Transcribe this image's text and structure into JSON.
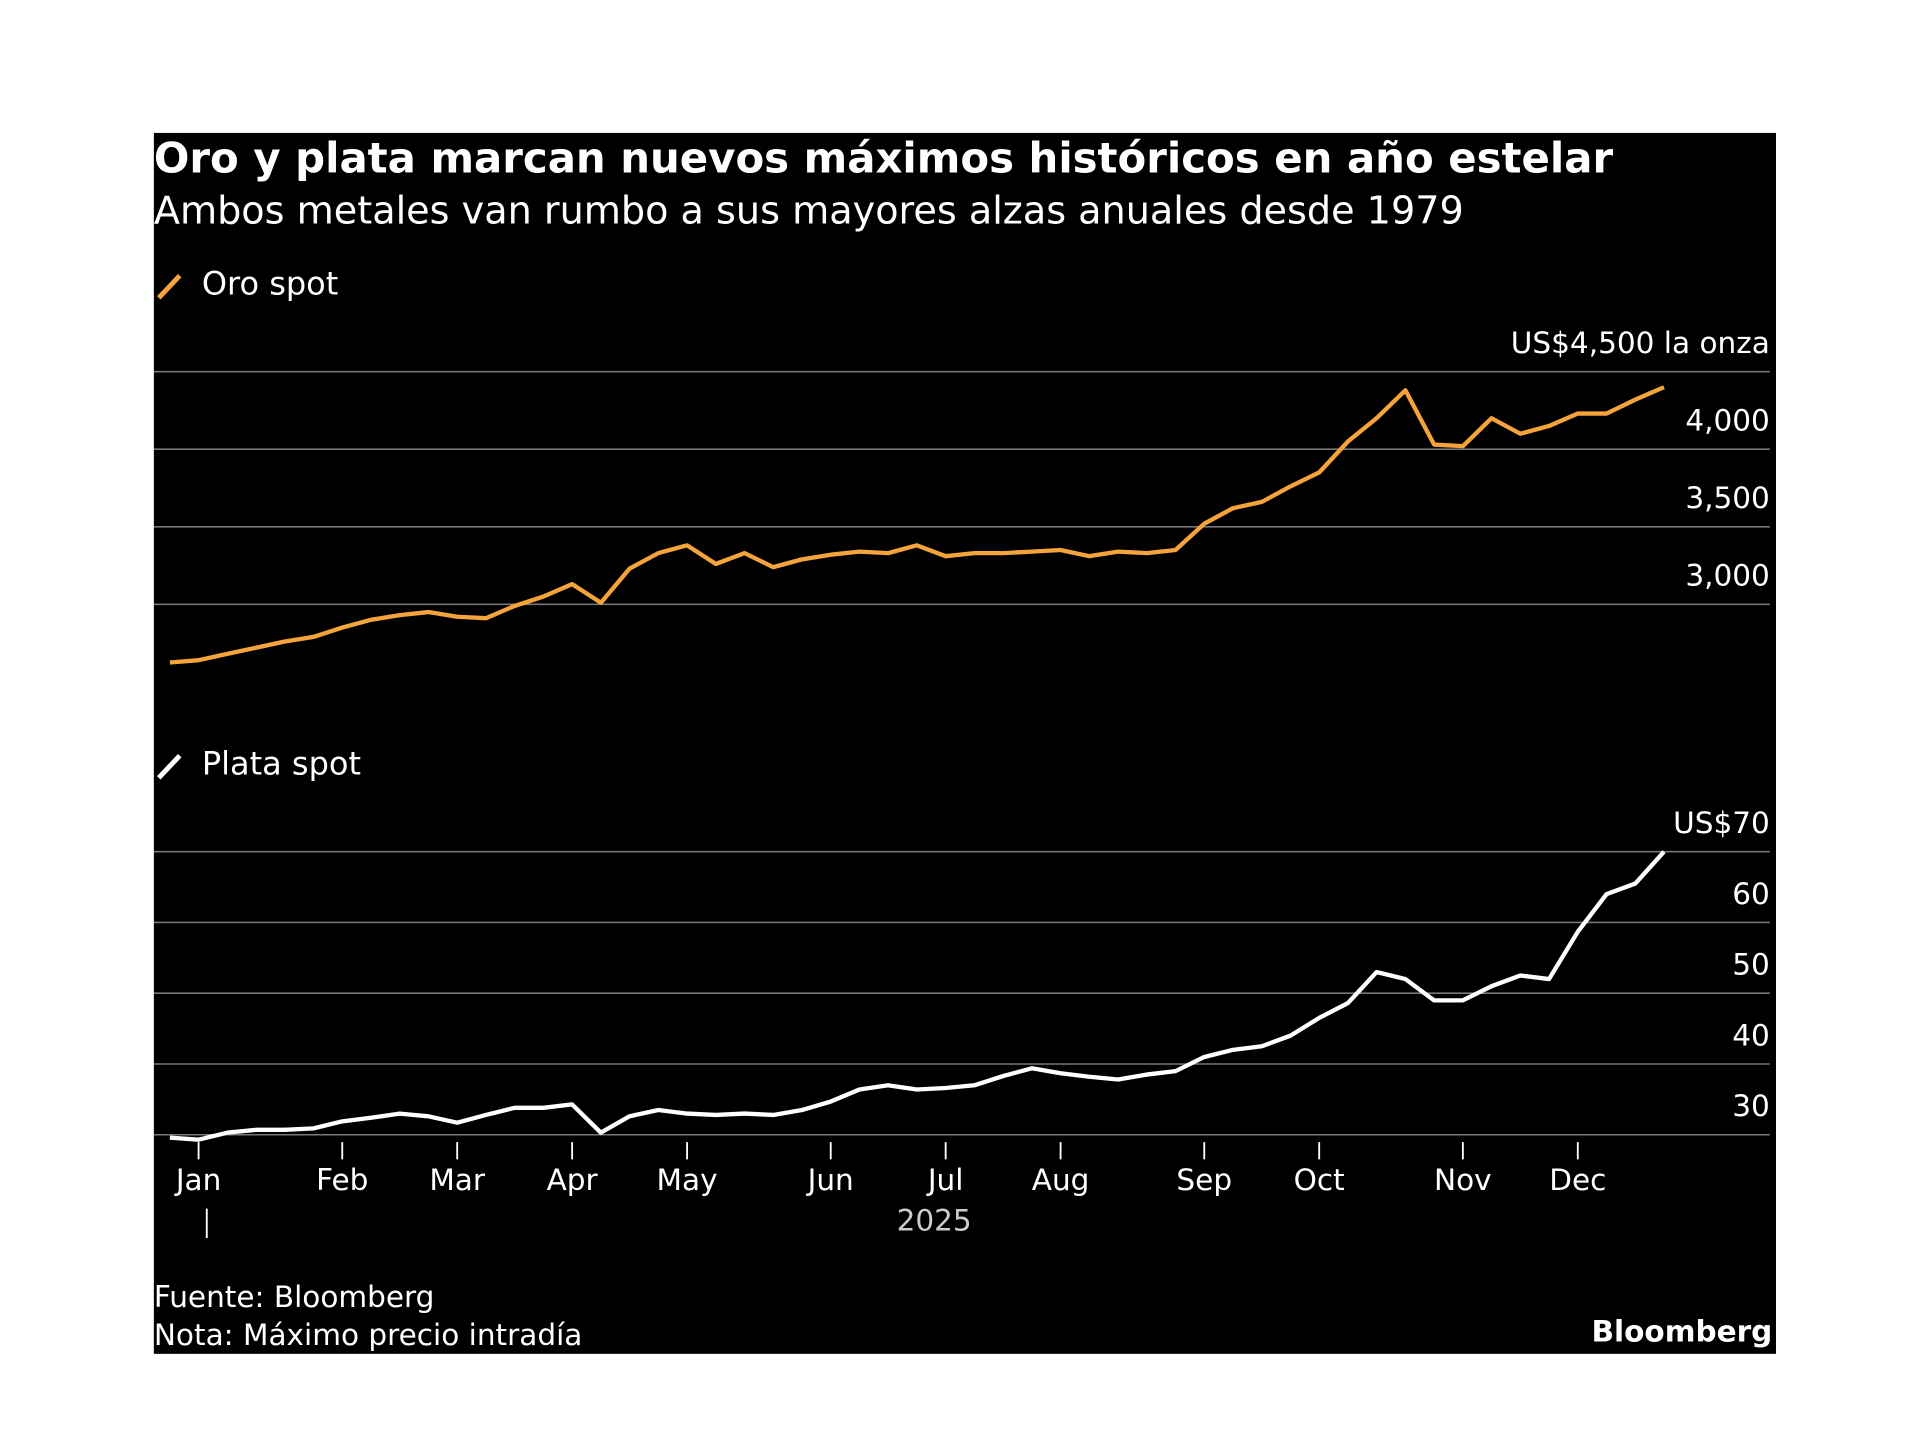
{
  "title": "Oro y plata marcan nuevos máximos históricos en año estelar",
  "subtitle": "Ambos metales van rumbo a sus mayores alzas anuales desde 1979",
  "source": "Fuente: Bloomberg",
  "note": "Nota: Máximo precio intradía",
  "brand": "Bloomberg",
  "chart_data": [
    {
      "type": "line",
      "series": [
        {
          "name": "Oro spot",
          "color": "#f5a33b",
          "values": [
            2625,
            2640,
            2680,
            2720,
            2760,
            2790,
            2850,
            2900,
            2930,
            2950,
            2920,
            2910,
            2990,
            3050,
            3130,
            3010,
            3230,
            3330,
            3380,
            3260,
            3330,
            3240,
            3290,
            3320,
            3340,
            3330,
            3380,
            3310,
            3330,
            3330,
            3340,
            3350,
            3310,
            3340,
            3330,
            3350,
            3520,
            3620,
            3660,
            3760,
            3850,
            4050,
            4200,
            4380,
            4030,
            4020,
            4200,
            4100,
            4150,
            4230,
            4230,
            4320,
            4400
          ]
        }
      ],
      "ylim": [
        2600,
        4500
      ],
      "yticks": [
        {
          "value": 4500,
          "label": "US$4,500 la onza"
        },
        {
          "value": 4000,
          "label": "4,000"
        },
        {
          "value": 3500,
          "label": "3,500"
        },
        {
          "value": 3000,
          "label": "3,000"
        }
      ],
      "grid": true
    },
    {
      "type": "line",
      "categories": [
        null,
        "Jan",
        null,
        null,
        null,
        null,
        "Feb",
        null,
        null,
        null,
        "Mar",
        null,
        null,
        null,
        "Apr",
        null,
        null,
        null,
        "May",
        null,
        null,
        null,
        null,
        "Jun",
        null,
        null,
        null,
        "Jul",
        null,
        null,
        null,
        "Aug",
        null,
        null,
        null,
        null,
        "Sep",
        null,
        null,
        null,
        "Oct",
        null,
        null,
        null,
        null,
        "Nov",
        null,
        null,
        null,
        "Dec",
        null,
        null,
        null
      ],
      "xlabel": "2025",
      "series": [
        {
          "name": "Plata spot",
          "color": "#ffffff",
          "values": [
            29.6,
            29.3,
            30.3,
            30.7,
            30.7,
            30.9,
            31.9,
            32.4,
            33,
            32.6,
            31.7,
            32.8,
            33.8,
            33.8,
            34.3,
            30.3,
            32.6,
            33.5,
            33,
            32.8,
            33,
            32.8,
            33.5,
            34.7,
            36.4,
            37,
            36.4,
            36.6,
            37,
            38.3,
            39.4,
            38.7,
            38.2,
            37.8,
            38.5,
            39,
            41,
            42,
            42.5,
            44,
            46.5,
            48.6,
            53,
            52,
            49,
            49,
            51,
            52.5,
            52,
            58.7,
            64,
            65.5,
            70
          ]
        }
      ],
      "ylim": [
        28,
        70
      ],
      "yticks": [
        {
          "value": 70,
          "label": "US$70"
        },
        60,
        50,
        40,
        30
      ],
      "grid": true
    }
  ]
}
